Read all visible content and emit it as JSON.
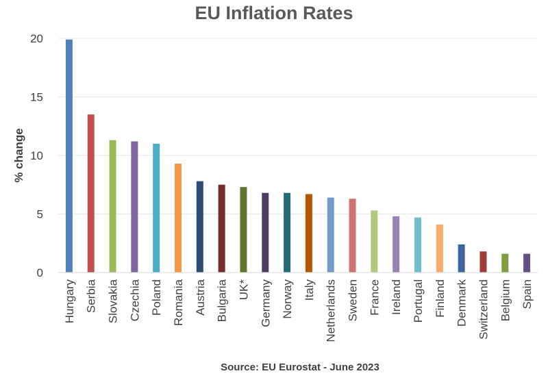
{
  "chart_data": {
    "type": "bar",
    "title": "EU Inflation Rates",
    "ylabel": "% change",
    "xlabel": "Source: EU Eurostat - June 2023",
    "ylim": [
      0,
      20
    ],
    "yticks": [
      0,
      5,
      10,
      15,
      20
    ],
    "grid": true,
    "categories": [
      "Hungary",
      "Serbia",
      "Slovakia",
      "Czechia",
      "Poland",
      "Romania",
      "Austria",
      "Bulgaria",
      "UK*",
      "Germany",
      "Norway",
      "Italy",
      "Netherlands",
      "Sweden",
      "France",
      "Ireland",
      "Portugal",
      "Finland",
      "Denmark",
      "Switzerland",
      "Belgium",
      "Spain"
    ],
    "values": [
      19.9,
      13.5,
      11.3,
      11.2,
      11.0,
      9.3,
      7.8,
      7.5,
      7.3,
      6.8,
      6.8,
      6.7,
      6.4,
      6.3,
      5.3,
      4.8,
      4.7,
      4.1,
      2.4,
      1.8,
      1.6,
      1.6
    ],
    "colors": [
      "#4F81BD",
      "#C0504D",
      "#9BBB59",
      "#8064A2",
      "#4BACC6",
      "#F79646",
      "#2C4D75",
      "#772C2A",
      "#5F7530",
      "#4D3B62",
      "#276A7C",
      "#B65708",
      "#729ACA",
      "#CD7371",
      "#AFC97A",
      "#9983B5",
      "#6FBDD1",
      "#F9AB6B",
      "#3A679C",
      "#9F3B38",
      "#7E9C40",
      "#664F84"
    ]
  }
}
